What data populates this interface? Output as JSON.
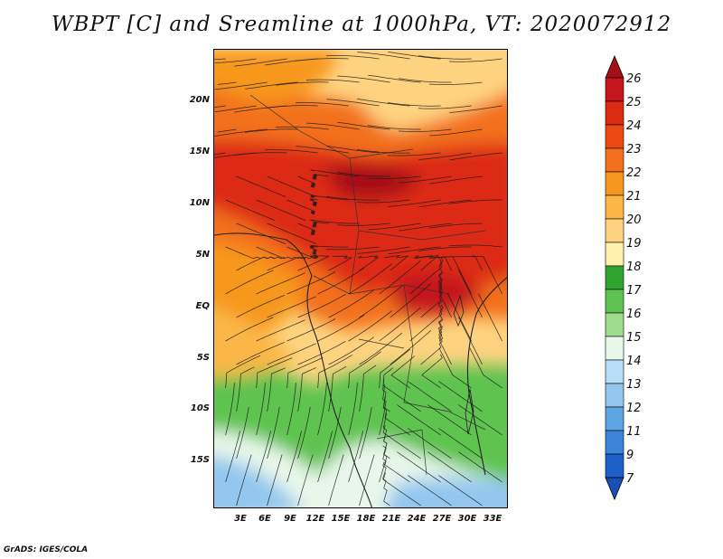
{
  "title": "WBPT [C] and Sreamline at 1000hPa, VT: 2020072912",
  "credit": "GrADS: IGES/COLA",
  "lat_ticks": [
    "20N",
    "15N",
    "10N",
    "5N",
    "EQ",
    "5S",
    "10S",
    "15S"
  ],
  "lon_ticks": [
    "3E",
    "6E",
    "9E",
    "12E",
    "15E",
    "18E",
    "21E",
    "24E",
    "27E",
    "30E",
    "33E"
  ],
  "colorbar": {
    "labels": [
      "26",
      "25",
      "24",
      "23",
      "22",
      "21",
      "20",
      "19",
      "18",
      "17",
      "16",
      "15",
      "14",
      "13",
      "12",
      "11",
      "9",
      "7"
    ],
    "colors": [
      "#a50f15",
      "#c4161c",
      "#dd2a13",
      "#ec4a15",
      "#f3711e",
      "#f7981e",
      "#fab746",
      "#fed37f",
      "#fff0ac",
      "#2fa530",
      "#5ec350",
      "#9fdc8e",
      "#e8f7ea",
      "#b8ddf6",
      "#93c7ef",
      "#5ea6e3",
      "#3b84d6",
      "#1e5fc8",
      "#1c4fb6"
    ]
  },
  "map": {
    "variable": "WBPT",
    "units": "C",
    "level": "1000hPa",
    "valid_time": "2020072912"
  }
}
